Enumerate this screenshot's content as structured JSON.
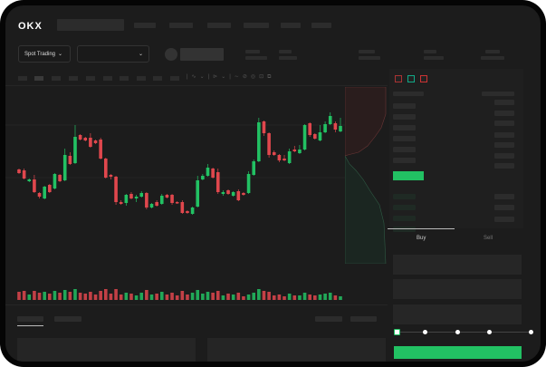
{
  "header": {
    "logo": "OKX"
  },
  "toolbar": {
    "market_selector": "Spot Trading",
    "pair_selector": ""
  },
  "order_book": {
    "view_icons": [
      "orderbook-both-icon",
      "orderbook-bids-icon",
      "orderbook-asks-icon"
    ]
  },
  "trade_panel": {
    "tabs": [
      {
        "label": "Buy",
        "active": true
      },
      {
        "label": "Sell",
        "active": false
      }
    ],
    "slider_percent": 0
  },
  "colors": {
    "up": "#22c163",
    "down": "#e0474d",
    "background": "#1c1c1c"
  },
  "chart_data": {
    "type": "candlestick",
    "candles": [
      [
        69,
        70,
        64,
        65
      ],
      [
        68,
        70,
        58,
        59
      ],
      [
        56,
        59,
        55,
        58
      ],
      [
        58,
        63,
        43,
        44
      ],
      [
        43,
        44,
        37,
        39
      ],
      [
        37,
        51,
        36,
        50
      ],
      [
        52,
        53,
        43,
        44
      ],
      [
        48,
        65,
        47,
        64
      ],
      [
        63,
        64,
        55,
        56
      ],
      [
        57,
        92,
        56,
        85
      ],
      [
        84,
        88,
        74,
        75
      ],
      [
        76,
        118,
        75,
        105
      ],
      [
        107,
        108,
        101,
        102
      ],
      [
        104,
        105,
        100,
        101
      ],
      [
        104,
        109,
        93,
        94
      ],
      [
        101,
        102,
        97,
        98
      ],
      [
        102,
        104,
        80,
        81
      ],
      [
        81,
        82,
        59,
        60
      ],
      [
        63,
        64,
        58,
        61
      ],
      [
        61,
        62,
        30,
        33
      ],
      [
        33,
        35,
        30,
        31
      ],
      [
        32,
        42,
        29,
        41
      ],
      [
        42,
        44,
        36,
        37
      ],
      [
        37,
        41,
        33,
        39
      ],
      [
        39,
        45,
        38,
        43
      ],
      [
        43,
        44,
        25,
        27
      ],
      [
        27,
        32,
        26,
        31
      ],
      [
        33,
        35,
        28,
        29
      ],
      [
        31,
        42,
        30,
        40
      ],
      [
        41,
        42,
        37,
        38
      ],
      [
        41,
        42,
        30,
        32
      ],
      [
        33,
        34,
        31,
        32
      ],
      [
        33,
        35,
        20,
        21
      ],
      [
        23,
        24,
        20,
        21
      ],
      [
        20,
        28,
        19,
        27
      ],
      [
        28,
        62,
        27,
        57
      ],
      [
        58,
        64,
        57,
        62
      ],
      [
        62,
        75,
        61,
        71
      ],
      [
        70,
        71,
        59,
        60
      ],
      [
        66,
        70,
        42,
        44
      ],
      [
        42,
        46,
        40,
        44
      ],
      [
        46,
        47,
        41,
        42
      ],
      [
        40,
        45,
        39,
        44
      ],
      [
        45,
        47,
        34,
        35
      ],
      [
        43,
        44,
        40,
        41
      ],
      [
        43,
        67,
        42,
        64
      ],
      [
        63,
        80,
        62,
        78
      ],
      [
        78,
        126,
        77,
        121
      ],
      [
        122,
        123,
        106,
        109
      ],
      [
        109,
        110,
        82,
        85
      ],
      [
        88,
        90,
        84,
        85
      ],
      [
        85,
        86,
        77,
        79
      ],
      [
        81,
        85,
        78,
        79
      ],
      [
        76,
        92,
        75,
        89
      ],
      [
        91,
        95,
        88,
        89
      ],
      [
        87,
        96,
        86,
        91
      ],
      [
        91,
        119,
        90,
        118
      ],
      [
        120,
        121,
        105,
        107
      ],
      [
        108,
        109,
        102,
        103
      ],
      [
        101,
        118,
        100,
        110
      ],
      [
        110,
        122,
        109,
        119
      ],
      [
        119,
        132,
        118,
        128
      ],
      [
        120,
        122,
        110,
        113
      ],
      [
        111,
        126,
        110,
        117
      ]
    ],
    "volumes": [
      9,
      10,
      6,
      10,
      8,
      9,
      7,
      10,
      8,
      11,
      9,
      12,
      8,
      7,
      9,
      6,
      10,
      12,
      7,
      12,
      6,
      8,
      7,
      5,
      8,
      11,
      6,
      7,
      9,
      6,
      8,
      5,
      10,
      6,
      8,
      11,
      7,
      9,
      8,
      10,
      5,
      7,
      6,
      8,
      4,
      6,
      8,
      12,
      10,
      9,
      5,
      6,
      4,
      7,
      5,
      5,
      8,
      6,
      5,
      6,
      7,
      8,
      5,
      4
    ]
  }
}
